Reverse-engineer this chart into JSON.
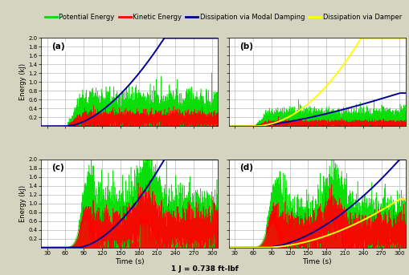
{
  "legend_entries": [
    {
      "label": "Potential Energy",
      "color": "#00dd00"
    },
    {
      "label": "Kinetic Energy",
      "color": "#ff0000"
    },
    {
      "label": "Dissipation via Modal Damping",
      "color": "#000099"
    },
    {
      "label": "Dissipation via Damper",
      "color": "#ffff00"
    }
  ],
  "subplots": [
    {
      "label": "(a)",
      "has_damper": false,
      "has_crossties": false,
      "modal_damp_end_time": 222,
      "modal_damp_max": 2.0,
      "modal_damp_power": 1.7,
      "damper_diss_end_time": null,
      "damper_diss_max": null,
      "damper_diss_power": 1.7,
      "pe_amplitude": 0.35,
      "ke_amplitude": 0.15,
      "wind_start": 62
    },
    {
      "label": "(b)",
      "has_damper": true,
      "has_crossties": false,
      "modal_damp_end_time": 300,
      "modal_damp_max": 0.75,
      "modal_damp_power": 1.4,
      "damper_diss_end_time": 237,
      "damper_diss_max": 2.0,
      "damper_diss_power": 2.0,
      "pe_amplitude": 0.18,
      "ke_amplitude": 0.06,
      "wind_start": 62
    },
    {
      "label": "(c)",
      "has_damper": false,
      "has_crossties": true,
      "modal_damp_end_time": 222,
      "modal_damp_max": 2.0,
      "modal_damp_power": 1.7,
      "damper_diss_end_time": null,
      "damper_diss_max": null,
      "damper_diss_power": 1.7,
      "pe_amplitude": 0.6,
      "ke_amplitude": 0.4,
      "wind_start": 80
    },
    {
      "label": "(d)",
      "has_damper": true,
      "has_crossties": true,
      "modal_damp_end_time": 300,
      "modal_damp_max": 2.0,
      "modal_damp_power": 1.7,
      "damper_diss_end_time": 300,
      "damper_diss_max": 1.1,
      "damper_diss_power": 1.8,
      "pe_amplitude": 0.5,
      "ke_amplitude": 0.35,
      "wind_start": 80
    }
  ],
  "xlim": [
    20,
    310
  ],
  "ylim": [
    0.0,
    2.0
  ],
  "xticks": [
    30,
    60,
    90,
    120,
    150,
    180,
    210,
    240,
    270,
    300
  ],
  "yticks": [
    0.2,
    0.4,
    0.6,
    0.8,
    1.0,
    1.2,
    1.4,
    1.6,
    1.8,
    2.0
  ],
  "xlabel": "Time (s)",
  "ylabel": "Energy (kJ)",
  "note": "1 J = 0.738 ft-lbf",
  "bg_color": "#d4d4c0",
  "plot_bg": "#ffffff",
  "grid_color": "#aaaaaa"
}
